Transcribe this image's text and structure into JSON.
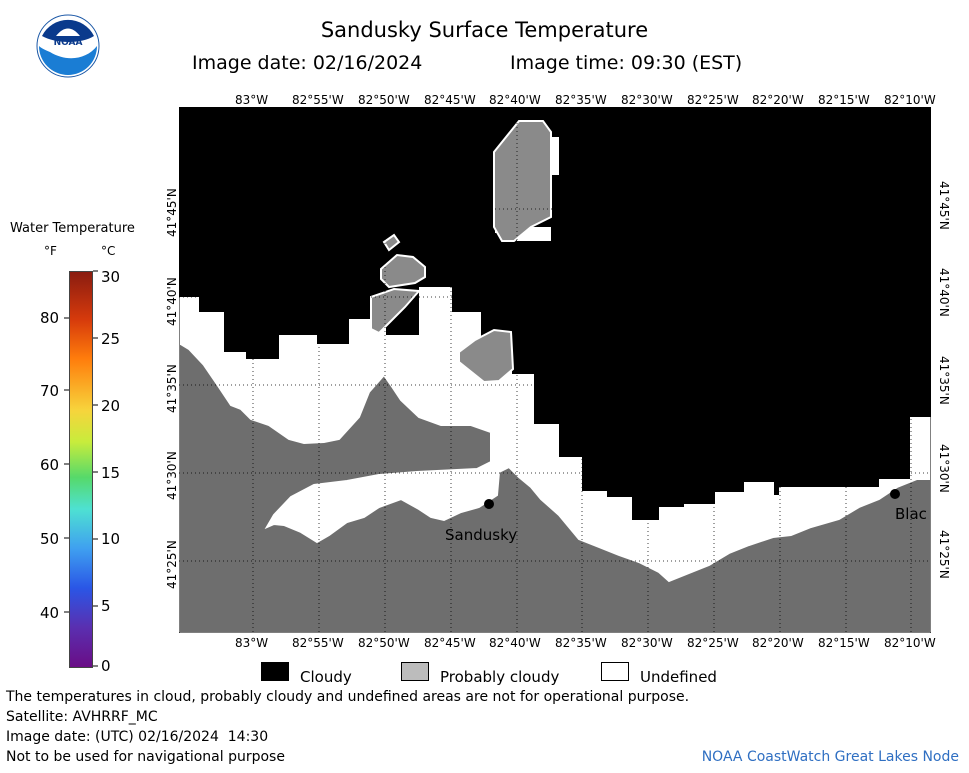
{
  "header": {
    "title": "Sandusky Surface Temperature",
    "image_date_label": "Image date: 02/16/2024",
    "image_time_label": "Image time: 09:30 (EST)"
  },
  "logo": {
    "text": "NOAA"
  },
  "colorbar": {
    "title": "Water Temperature",
    "unit_f": "°F",
    "unit_c": "°C",
    "f_ticks": [
      "80",
      "70",
      "60",
      "50",
      "40"
    ],
    "c_ticks": [
      "30",
      "25",
      "20",
      "15",
      "10",
      "5",
      "0"
    ]
  },
  "axes": {
    "lon_labels": [
      "83°W",
      "82°55'W",
      "82°50'W",
      "82°45'W",
      "82°40'W",
      "82°35'W",
      "82°30'W",
      "82°25'W",
      "82°20'W",
      "82°15'W",
      "82°10'W"
    ],
    "lat_labels": [
      "41°45'N",
      "41°40'N",
      "41°35'N",
      "41°30'N",
      "41°25'N"
    ]
  },
  "places": {
    "sandusky": "Sandusky",
    "east_city": "Blac"
  },
  "legend": {
    "cloudy": "Cloudy",
    "probably_cloudy": "Probably cloudy",
    "undefined": "Undefined",
    "colors": {
      "cloudy": "#000000",
      "probably_cloudy": "#bcbcbc",
      "undefined": "#ffffff",
      "land": "#6e6e6e"
    }
  },
  "footer": {
    "disclaimer": "The temperatures in cloud, probably cloudy and undefined areas are not for operational purpose.",
    "satellite": "Satellite: AVHRRF_MC",
    "utc_date": "Image date: (UTC) 02/16/2024  14:30",
    "nav_warning": "Not to be used for navigational purpose",
    "credit": "NOAA CoastWatch Great Lakes Node"
  }
}
